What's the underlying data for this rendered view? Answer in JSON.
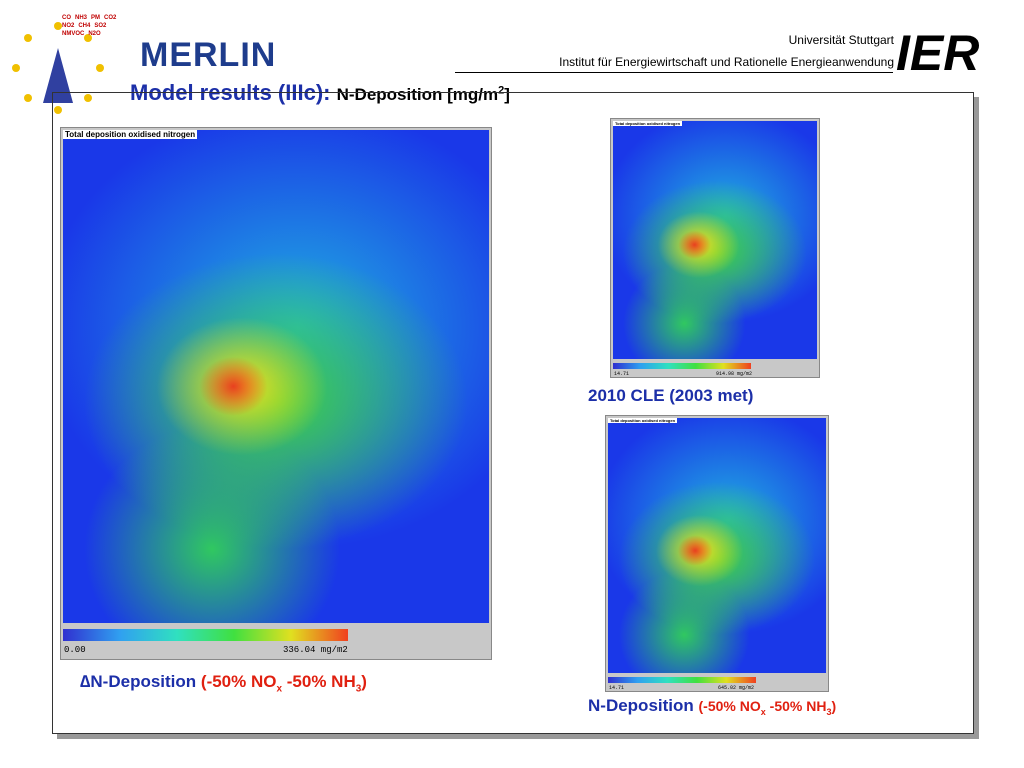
{
  "header": {
    "gases": [
      "CO",
      "NH3",
      "PM",
      "CO2",
      "NO2",
      "CH4",
      "SO2",
      "NMVOC",
      "N2O"
    ],
    "merlin": "MERLIN",
    "university": "Universität Stuttgart",
    "institute": "Institut für Energiewirtschaft und Rationelle Energieanwendung",
    "ier": "IER",
    "title_main": "Model results (IIIc):",
    "title_sub": "N-Deposition [mg/m",
    "title_sup": "2",
    "title_end": "]"
  },
  "maps": [
    {
      "title": "Total deposition oxidised nitrogen",
      "scale_min": "0.00",
      "scale_max": "336.04 mg/m2",
      "caption": [
        "∆N-Deposition",
        "(-50% NO",
        "x",
        " -50% NH",
        "3",
        ")"
      ]
    },
    {
      "title": "Total deposition oxidised nitrogen",
      "scale_min": "14.71",
      "scale_max": "914.98 mg/m2",
      "caption": [
        "2010 CLE (2003 met)"
      ]
    },
    {
      "title": "Total deposition oxidised nitrogen",
      "scale_min": "14.71",
      "scale_max": "645.02 mg/m2",
      "caption": [
        "N-Deposition",
        "(-50% NO",
        "x",
        "-50% NH",
        "3",
        ")"
      ]
    }
  ]
}
